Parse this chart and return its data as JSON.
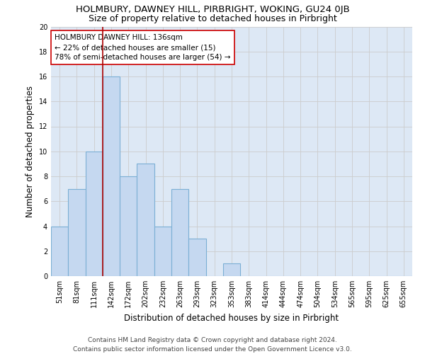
{
  "title": "HOLMBURY, DAWNEY HILL, PIRBRIGHT, WOKING, GU24 0JB",
  "subtitle": "Size of property relative to detached houses in Pirbright",
  "xlabel": "Distribution of detached houses by size in Pirbright",
  "ylabel": "Number of detached properties",
  "bar_values": [
    4,
    7,
    10,
    16,
    8,
    9,
    4,
    7,
    3,
    0,
    1,
    0,
    0,
    0,
    0,
    0,
    0,
    0,
    0,
    0,
    0
  ],
  "bar_labels": [
    "51sqm",
    "81sqm",
    "111sqm",
    "142sqm",
    "172sqm",
    "202sqm",
    "232sqm",
    "263sqm",
    "293sqm",
    "323sqm",
    "353sqm",
    "383sqm",
    "414sqm",
    "444sqm",
    "474sqm",
    "504sqm",
    "534sqm",
    "565sqm",
    "595sqm",
    "625sqm",
    "655sqm"
  ],
  "bar_color": "#c5d8f0",
  "bar_edge_color": "#7bafd4",
  "bar_width": 1.0,
  "vline_x": 2.5,
  "vline_color": "#aa0000",
  "annotation_text": "HOLMBURY DAWNEY HILL: 136sqm\n← 22% of detached houses are smaller (15)\n78% of semi-detached houses are larger (54) →",
  "annotation_box_color": "#ffffff",
  "annotation_box_edge": "#cc0000",
  "ylim": [
    0,
    20
  ],
  "yticks": [
    0,
    2,
    4,
    6,
    8,
    10,
    12,
    14,
    16,
    18,
    20
  ],
  "grid_color": "#cccccc",
  "bg_color": "#dde8f5",
  "footer": "Contains HM Land Registry data © Crown copyright and database right 2024.\nContains public sector information licensed under the Open Government Licence v3.0.",
  "title_fontsize": 9.5,
  "subtitle_fontsize": 9,
  "axis_label_fontsize": 8.5,
  "tick_fontsize": 7,
  "annotation_fontsize": 7.5,
  "footer_fontsize": 6.5
}
